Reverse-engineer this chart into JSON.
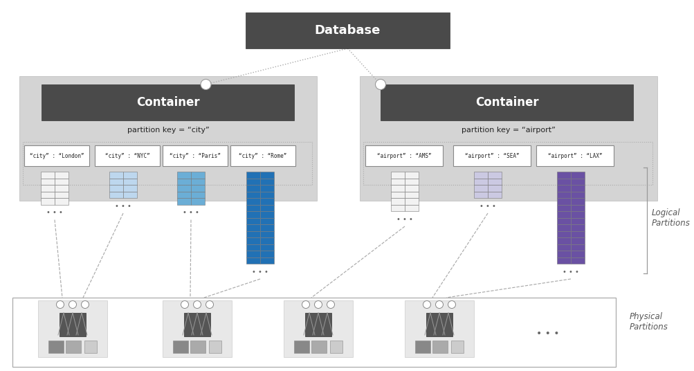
{
  "bg_color": "#ffffff",
  "title_text": "Database",
  "container1_label": "Container",
  "container2_label": "Container",
  "container1_pk": "partition key = “city”",
  "container2_pk": "partition key = “airport”",
  "container1_partitions": [
    "“city” : “London”",
    "“city” : “NYC”",
    "“city” : “Paris”",
    "“city” : “Rome”"
  ],
  "container2_partitions": [
    "“airport” : “AMS”",
    "“airport” : “SEA”",
    "“airport” : “LAX”"
  ],
  "logical_label": "Logical\nPartitions",
  "physical_label": "Physical\nPartitions",
  "dark_header_color": "#4a4a4a",
  "header_text_color": "#ffffff",
  "container_bg_color": "#d4d4d4",
  "white": "#ffffff",
  "blue_light": "#bdd7ee",
  "blue_mid": "#6baed6",
  "blue_dark": "#2171b5",
  "purple_light": "#cbc9e2",
  "purple_dark": "#6a51a3",
  "gray_cell": "#f2f2f2",
  "phys_bg": "#e8e8e8"
}
